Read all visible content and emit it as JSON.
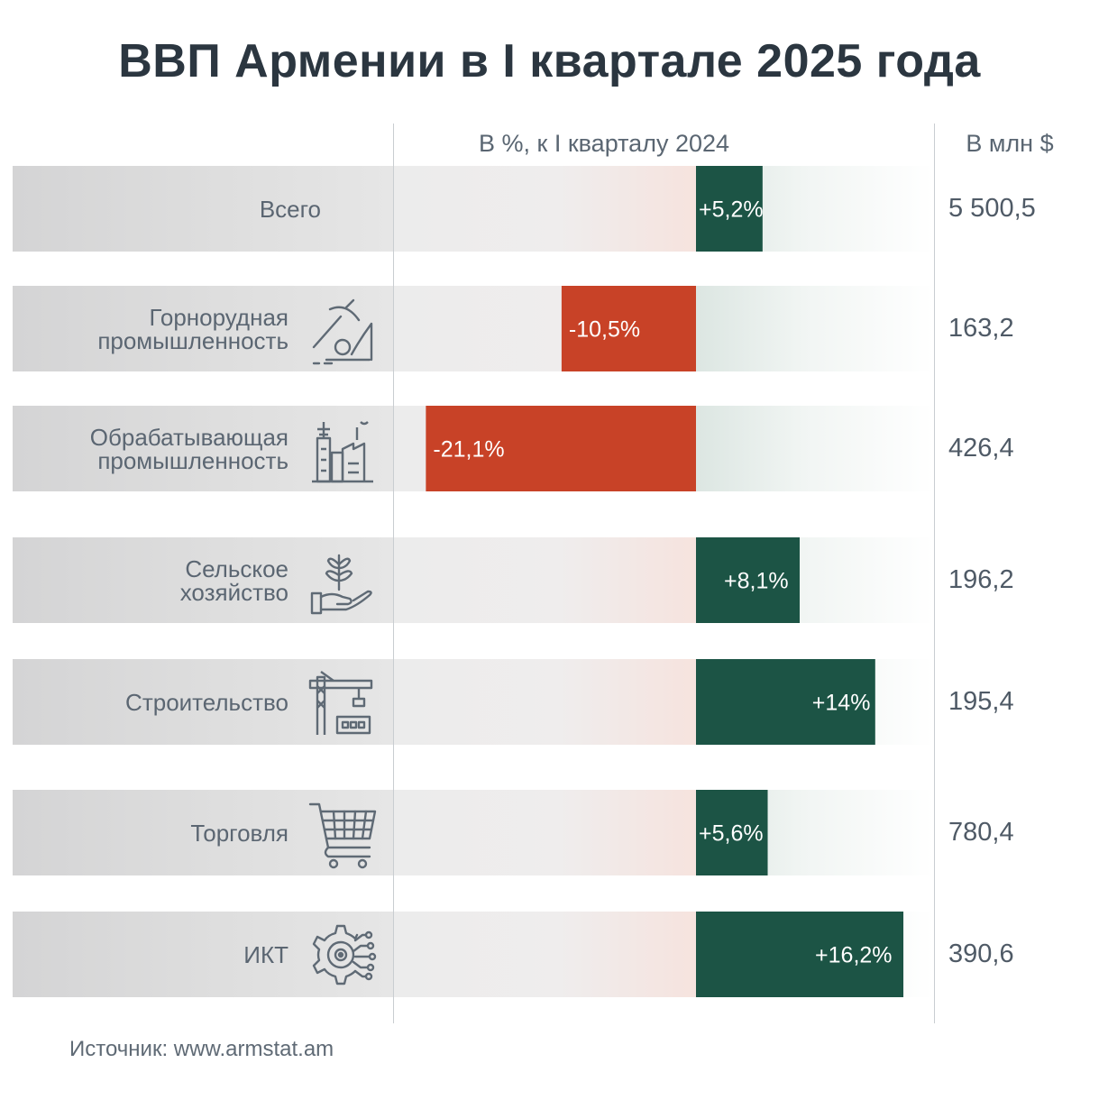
{
  "title": "ВВП Армении в I квартале 2025 года",
  "col_header_pct": "В %, к I кварталу 2024",
  "col_header_usd": "В млн $",
  "source": "Источник: www.armstat.am",
  "colors": {
    "positive": "#1c5445",
    "negative": "#c84227",
    "title": "#2b3640",
    "text": "#5b6672"
  },
  "rows": [
    {
      "label": [
        "Всего"
      ],
      "icon": "",
      "pct_label": "+5,2%",
      "usd": "5 500,5"
    },
    {
      "label": [
        "Горнорудная",
        "промышленность"
      ],
      "icon": "mining-icon",
      "pct_label": "-10,5%",
      "usd": "163,2"
    },
    {
      "label": [
        "Обрабатывающая",
        "промышленность"
      ],
      "icon": "factory-icon",
      "pct_label": "-21,1%",
      "usd": "426,4"
    },
    {
      "label": [
        "Сельское",
        "хозяйство"
      ],
      "icon": "plant-in-hand-icon",
      "pct_label": "+8,1%",
      "usd": "196,2"
    },
    {
      "label": [
        "Строительство"
      ],
      "icon": "construction-crane-icon",
      "pct_label": "+14%",
      "usd": "195,4"
    },
    {
      "label": [
        "Торговля"
      ],
      "icon": "shopping-cart-icon",
      "pct_label": "+5,6%",
      "usd": "780,4"
    },
    {
      "label": [
        "ИКТ"
      ],
      "icon": "gear-circuit-icon",
      "pct_label": "+16,2%",
      "usd": "390,6"
    }
  ],
  "chart_data": {
    "type": "bar",
    "orientation": "horizontal",
    "title": "ВВП Армении в I квартале 2025 года",
    "categories": [
      "Всего",
      "Горнорудная промышленность",
      "Обрабатывающая промышленность",
      "Сельское хозяйство",
      "Строительство",
      "Торговля",
      "ИКТ"
    ],
    "series": [
      {
        "name": "В %, к I кварталу 2024",
        "values": [
          5.2,
          -10.5,
          -21.1,
          8.1,
          14,
          5.6,
          16.2
        ]
      },
      {
        "name": "В млн $",
        "values": [
          5500.5,
          163.2,
          426.4,
          196.2,
          195.4,
          780.4,
          390.6
        ]
      }
    ],
    "xlim": [
      -21.1,
      16.2
    ],
    "grid": false
  }
}
